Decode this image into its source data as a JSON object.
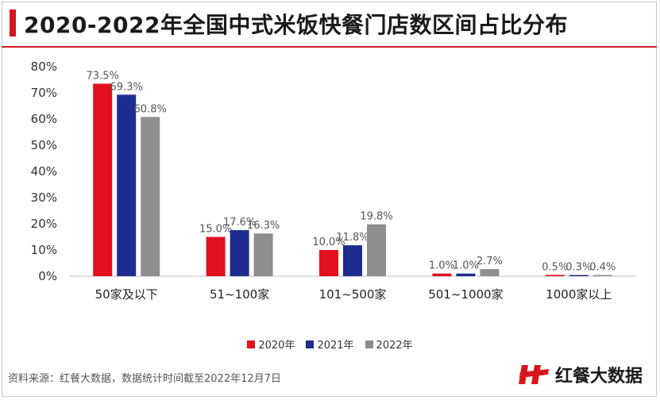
{
  "title": "2020-2022年全国中式米饭快餐门店数区间占比分布",
  "footer": {
    "source": "资料来源：红餐大数据，数据统计时间截至2022年12月7日",
    "logo_text": "红餐大数据"
  },
  "colors": {
    "accent": "#d7151c"
  },
  "chart_data": {
    "type": "bar",
    "categories": [
      "50家及以下",
      "51~100家",
      "101~500家",
      "501~1000家",
      "1000家以上"
    ],
    "series": [
      {
        "name": "2020年",
        "color": "#e2101e",
        "values": [
          73.5,
          15.0,
          10.0,
          1.0,
          0.5
        ]
      },
      {
        "name": "2021年",
        "color": "#1d2c8f",
        "values": [
          69.3,
          17.6,
          11.8,
          1.0,
          0.3
        ]
      },
      {
        "name": "2022年",
        "color": "#8e8e8e",
        "values": [
          60.8,
          16.3,
          19.8,
          2.7,
          0.4
        ]
      }
    ],
    "value_labels": [
      [
        "73.5%",
        "69.3%",
        "60.8%"
      ],
      [
        "15.0%",
        "17.6%",
        "16.3%"
      ],
      [
        "10.0%",
        "11.8%",
        "19.8%"
      ],
      [
        "1.0%",
        "1.0%",
        "2.7%"
      ],
      [
        "0.5%",
        "0.3%",
        "0.4%"
      ]
    ],
    "y_ticks": [
      "0%",
      "10%",
      "20%",
      "30%",
      "40%",
      "50%",
      "60%",
      "70%",
      "80%"
    ],
    "ylim": [
      0,
      80
    ],
    "legend_position": "bottom-center"
  }
}
